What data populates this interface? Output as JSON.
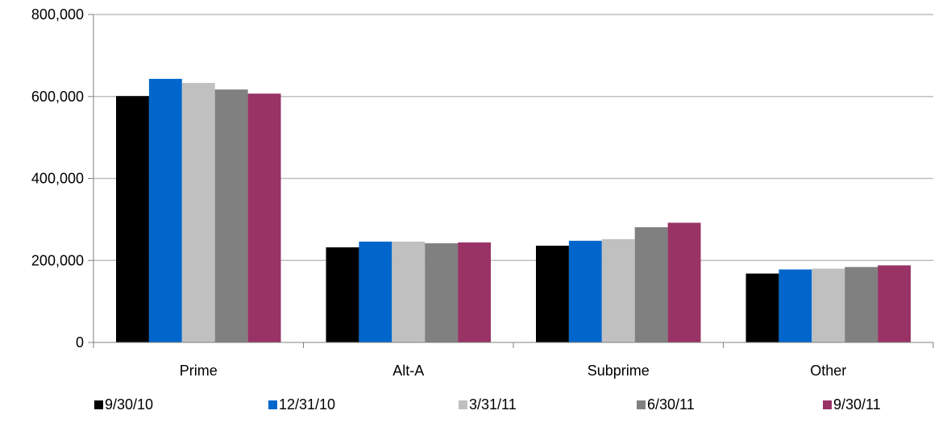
{
  "chart_data": {
    "type": "bar",
    "categories": [
      "Prime",
      "Alt-A",
      "Subprime",
      "Other"
    ],
    "series": [
      {
        "name": "9/30/10",
        "color": "#000000",
        "values": [
          601000,
          232000,
          236000,
          168000
        ]
      },
      {
        "name": "12/31/10",
        "color": "#0066CC",
        "values": [
          643000,
          246000,
          248000,
          178000
        ]
      },
      {
        "name": "3/31/11",
        "color": "#C0C0C0",
        "values": [
          633000,
          246000,
          252000,
          180000
        ]
      },
      {
        "name": "6/30/11",
        "color": "#808080",
        "values": [
          617000,
          242000,
          281000,
          184000
        ]
      },
      {
        "name": "9/30/11",
        "color": "#993366",
        "values": [
          607000,
          244000,
          292000,
          188000
        ]
      }
    ],
    "ylim": [
      0,
      800000
    ],
    "yticks": [
      {
        "value": 0,
        "label": "0"
      },
      {
        "value": 200000,
        "label": "200,000"
      },
      {
        "value": 400000,
        "label": "400,000"
      },
      {
        "value": 600000,
        "label": "600,000"
      },
      {
        "value": 800000,
        "label": "800,000"
      }
    ],
    "grid": true,
    "legend_position": "bottom"
  }
}
